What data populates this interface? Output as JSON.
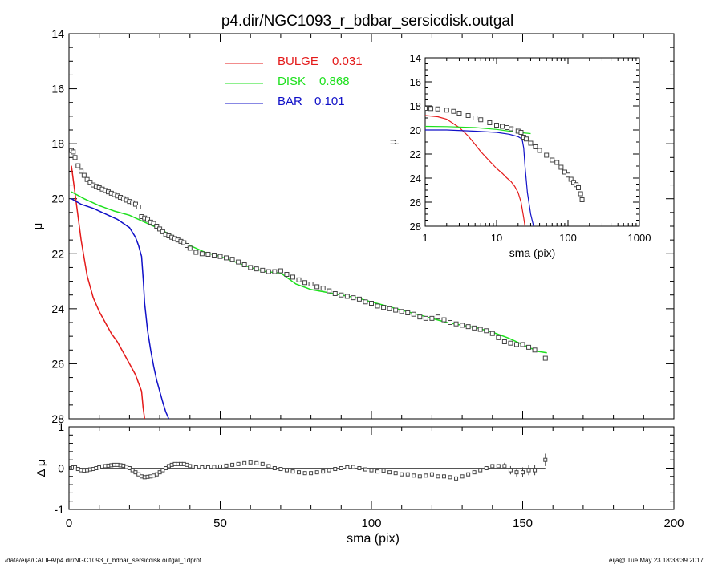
{
  "title": "p4.dir/NGC1093_r_bdbar_sersicdisk.outgal",
  "footer": {
    "left": "/data/eija/CALIFA/p4.dir/NGC1093_r_bdbar_sersicdisk.outgal_1dprof",
    "right": "eija@  Tue May 23 18:33:39 2017"
  },
  "colors": {
    "bulge": "#e41a1a",
    "disk": "#1de01d",
    "bar": "#1010c8",
    "data": "#444444"
  },
  "chart_data": [
    {
      "panel": "main",
      "type": "line",
      "xlabel": "sma (pix)",
      "ylabel": "μ",
      "xlim": [
        0,
        200
      ],
      "ylim": [
        28,
        14
      ],
      "yticks": [
        14,
        16,
        18,
        20,
        22,
        24,
        26,
        28
      ],
      "xticks": [
        0,
        50,
        100,
        150,
        200
      ],
      "legend": {
        "placement": "top-center",
        "entries": [
          {
            "label": "BULGE",
            "value": "0.031",
            "color": "#e41a1a"
          },
          {
            "label": "DISK",
            "value": "0.868",
            "color": "#1de01d"
          },
          {
            "label": "BAR",
            "value": "0.101",
            "color": "#1010c8"
          }
        ]
      },
      "series": [
        {
          "id": "bulge",
          "color": "#e41a1a",
          "x": [
            0.8,
            2,
            4,
            6,
            8,
            10,
            12,
            14,
            16,
            18,
            20,
            22,
            23,
            24,
            24.5,
            25
          ],
          "y": [
            18.8,
            19.8,
            21.5,
            22.8,
            23.6,
            24.1,
            24.5,
            24.9,
            25.2,
            25.6,
            26.0,
            26.4,
            26.7,
            27.0,
            27.6,
            28.0
          ]
        },
        {
          "id": "bar",
          "color": "#1010c8",
          "x": [
            0.8,
            4,
            8,
            12,
            16,
            20,
            22,
            23,
            24,
            24.6,
            25,
            26,
            27,
            28,
            29,
            30,
            31,
            32,
            33
          ],
          "y": [
            20.0,
            20.2,
            20.35,
            20.55,
            20.75,
            21.05,
            21.4,
            21.7,
            22.1,
            23.0,
            23.8,
            24.8,
            25.5,
            26.1,
            26.6,
            27.0,
            27.4,
            27.75,
            28.0
          ]
        },
        {
          "id": "disk",
          "color": "#1de01d",
          "x": [
            0.8,
            5,
            10,
            15,
            20,
            25,
            30,
            35,
            40,
            45,
            50,
            55,
            60,
            65,
            70,
            75,
            80,
            85,
            90,
            95,
            100,
            105,
            110,
            115,
            120,
            125,
            130,
            135,
            140,
            145,
            150,
            155,
            158
          ],
          "y": [
            19.75,
            20.0,
            20.25,
            20.45,
            20.6,
            20.85,
            21.1,
            21.4,
            21.7,
            21.95,
            22.1,
            22.3,
            22.5,
            22.65,
            22.7,
            23.1,
            23.3,
            23.4,
            23.5,
            23.6,
            23.75,
            23.9,
            24.05,
            24.2,
            24.35,
            24.5,
            24.6,
            24.7,
            24.85,
            25.05,
            25.3,
            25.55,
            25.6
          ]
        },
        {
          "id": "data",
          "color": "#444444",
          "markers": true,
          "x": [
            0.8,
            1.4,
            2,
            3,
            4,
            5,
            6,
            7,
            8,
            9,
            10,
            11,
            12,
            13,
            14,
            15,
            16,
            17,
            18,
            19,
            20,
            21,
            22,
            23,
            24,
            25,
            26,
            27,
            28,
            29,
            30,
            31,
            32,
            33,
            34,
            35,
            36,
            37,
            38,
            39,
            40,
            42,
            44,
            46,
            48,
            50,
            52,
            54,
            56,
            58,
            60,
            62,
            64,
            66,
            68,
            70,
            72,
            74,
            76,
            78,
            80,
            82,
            84,
            86,
            88,
            90,
            92,
            94,
            96,
            98,
            100,
            102,
            104,
            106,
            108,
            110,
            112,
            114,
            116,
            118,
            120,
            122,
            124,
            126,
            128,
            130,
            132,
            134,
            136,
            138,
            140,
            142,
            144,
            146,
            148,
            150,
            152,
            154,
            157.5
          ],
          "y": [
            18.25,
            18.3,
            18.5,
            18.8,
            19.0,
            19.15,
            19.3,
            19.4,
            19.5,
            19.55,
            19.6,
            19.65,
            19.7,
            19.75,
            19.8,
            19.85,
            19.9,
            19.95,
            20.0,
            20.05,
            20.1,
            20.15,
            20.2,
            20.3,
            20.65,
            20.7,
            20.75,
            20.85,
            20.9,
            21.0,
            21.1,
            21.2,
            21.3,
            21.35,
            21.4,
            21.45,
            21.5,
            21.55,
            21.6,
            21.7,
            21.8,
            21.95,
            22.0,
            22.02,
            22.05,
            22.1,
            22.15,
            22.2,
            22.3,
            22.4,
            22.5,
            22.55,
            22.6,
            22.65,
            22.65,
            22.62,
            22.75,
            22.85,
            22.95,
            23.05,
            23.1,
            23.2,
            23.25,
            23.35,
            23.45,
            23.5,
            23.55,
            23.6,
            23.65,
            23.75,
            23.8,
            23.9,
            23.95,
            24.0,
            24.05,
            24.1,
            24.15,
            24.2,
            24.3,
            24.35,
            24.35,
            24.3,
            24.4,
            24.5,
            24.55,
            24.6,
            24.65,
            24.7,
            24.75,
            24.8,
            24.9,
            25.05,
            25.2,
            25.25,
            25.3,
            25.3,
            25.4,
            25.5,
            25.8
          ]
        }
      ]
    },
    {
      "panel": "inset",
      "type": "line",
      "xlabel": "sma (pix)",
      "ylabel": "μ",
      "xscale": "log",
      "xlim": [
        1,
        1000
      ],
      "ylim": [
        28,
        14
      ],
      "yticks": [
        14,
        16,
        18,
        20,
        22,
        24,
        26,
        28
      ],
      "xticks": [
        1,
        10,
        100,
        1000
      ],
      "series": [
        {
          "id": "bulge",
          "color": "#e41a1a",
          "x": [
            1,
            1.5,
            2,
            3,
            4,
            5,
            6,
            8,
            10,
            12,
            14,
            16,
            18,
            20,
            22,
            24,
            25
          ],
          "y": [
            18.8,
            18.9,
            19.1,
            19.8,
            20.5,
            21.2,
            21.8,
            22.6,
            23.2,
            23.6,
            24.0,
            24.3,
            24.7,
            25.2,
            26.0,
            27.3,
            28.0
          ]
        },
        {
          "id": "disk",
          "color": "#1de01d",
          "x": [
            1,
            2,
            5,
            10,
            20,
            30
          ],
          "y": [
            19.7,
            19.72,
            19.8,
            19.95,
            20.2,
            20.3
          ]
        },
        {
          "id": "bar",
          "color": "#1010c8",
          "x": [
            1,
            2,
            5,
            10,
            15,
            20,
            22,
            23,
            24,
            25,
            27,
            30,
            33
          ],
          "y": [
            20.0,
            20.0,
            20.1,
            20.2,
            20.35,
            20.55,
            20.7,
            20.9,
            21.5,
            23.0,
            25.2,
            27.0,
            28.0
          ]
        },
        {
          "id": "data",
          "color": "#444444",
          "markers": true,
          "x": [
            1,
            1.2,
            1.5,
            2,
            2.5,
            3,
            4,
            5,
            6,
            8,
            10,
            12,
            14,
            16,
            18,
            20,
            22,
            24,
            26,
            30,
            35,
            40,
            50,
            60,
            70,
            80,
            90,
            100,
            110,
            120,
            130,
            140,
            150,
            157.5
          ],
          "y": [
            18.2,
            18.22,
            18.25,
            18.35,
            18.45,
            18.6,
            18.8,
            19.0,
            19.15,
            19.4,
            19.6,
            19.7,
            19.8,
            19.9,
            20.0,
            20.1,
            20.2,
            20.6,
            20.75,
            21.1,
            21.4,
            21.7,
            22.1,
            22.5,
            22.7,
            23.1,
            23.5,
            23.75,
            24.1,
            24.35,
            24.55,
            24.8,
            25.3,
            25.8
          ]
        }
      ]
    },
    {
      "panel": "residual",
      "type": "scatter",
      "xlabel": "sma (pix)",
      "ylabel": "Δ μ",
      "xlim": [
        0,
        200
      ],
      "ylim": [
        -1,
        1
      ],
      "yticks": [
        -1,
        0,
        1
      ],
      "xticks": [
        0,
        50,
        100,
        150,
        200
      ],
      "x": [
        0.8,
        1.4,
        2,
        3,
        4,
        5,
        6,
        7,
        8,
        9,
        10,
        11,
        12,
        13,
        14,
        15,
        16,
        17,
        18,
        19,
        20,
        21,
        22,
        23,
        24,
        25,
        26,
        27,
        28,
        29,
        30,
        31,
        32,
        33,
        34,
        35,
        36,
        37,
        38,
        39,
        40,
        42,
        44,
        46,
        48,
        50,
        52,
        54,
        56,
        58,
        60,
        62,
        64,
        66,
        68,
        70,
        72,
        74,
        76,
        78,
        80,
        82,
        84,
        86,
        88,
        90,
        92,
        94,
        96,
        98,
        100,
        102,
        104,
        106,
        108,
        110,
        112,
        114,
        116,
        118,
        120,
        122,
        124,
        126,
        128,
        130,
        132,
        134,
        136,
        138,
        140,
        142,
        144,
        146,
        148,
        150,
        152,
        154,
        157.5
      ],
      "y": [
        0.0,
        0.02,
        0.02,
        -0.02,
        -0.05,
        -0.06,
        -0.05,
        -0.03,
        -0.02,
        0.0,
        0.02,
        0.04,
        0.05,
        0.06,
        0.07,
        0.08,
        0.08,
        0.07,
        0.06,
        0.03,
        0.0,
        -0.05,
        -0.1,
        -0.15,
        -0.2,
        -0.22,
        -0.21,
        -0.2,
        -0.18,
        -0.15,
        -0.1,
        -0.05,
        0.0,
        0.05,
        0.08,
        0.1,
        0.1,
        0.1,
        0.1,
        0.08,
        0.05,
        0.02,
        0.02,
        0.02,
        0.03,
        0.04,
        0.06,
        0.08,
        0.1,
        0.12,
        0.14,
        0.12,
        0.1,
        0.05,
        0.0,
        -0.02,
        -0.05,
        -0.08,
        -0.1,
        -0.12,
        -0.12,
        -0.1,
        -0.08,
        -0.05,
        -0.02,
        0.0,
        0.02,
        0.03,
        0.0,
        -0.03,
        -0.05,
        -0.08,
        -0.06,
        -0.1,
        -0.12,
        -0.15,
        -0.15,
        -0.18,
        -0.2,
        -0.18,
        -0.15,
        -0.2,
        -0.2,
        -0.22,
        -0.25,
        -0.2,
        -0.15,
        -0.1,
        -0.05,
        0.0,
        0.05,
        0.05,
        0.05,
        -0.05,
        -0.1,
        -0.1,
        -0.05,
        -0.05,
        0.2
      ],
      "err": [
        0,
        0,
        0,
        0,
        0,
        0,
        0,
        0,
        0,
        0,
        0,
        0,
        0,
        0,
        0,
        0,
        0,
        0,
        0,
        0,
        0,
        0,
        0,
        0,
        0,
        0,
        0,
        0,
        0,
        0,
        0,
        0,
        0,
        0,
        0,
        0,
        0,
        0,
        0,
        0,
        0,
        0,
        0,
        0,
        0,
        0,
        0,
        0,
        0,
        0,
        0,
        0,
        0,
        0,
        0,
        0,
        0,
        0,
        0,
        0,
        0,
        0,
        0,
        0,
        0,
        0,
        0,
        0,
        0,
        0,
        0,
        0,
        0,
        0,
        0,
        0,
        0,
        0,
        0,
        0,
        0,
        0,
        0,
        0,
        0,
        0,
        0,
        0,
        0,
        0,
        0,
        0,
        0.08,
        0.1,
        0.1,
        0.12,
        0.12,
        0.12,
        0.15
      ]
    }
  ]
}
